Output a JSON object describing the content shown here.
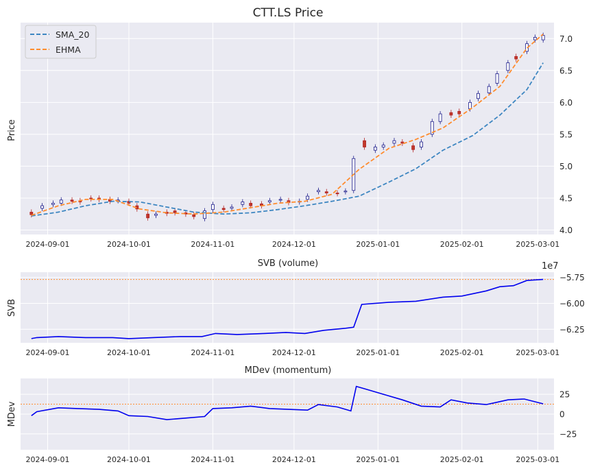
{
  "chart_data": [
    {
      "type": "candlestick",
      "title": "CTT.LS Price",
      "ylabel": "Price",
      "xlim": [
        "2024-08-22",
        "2025-03-07"
      ],
      "ylim": [
        3.93,
        7.25
      ],
      "y_ticks": [
        4.0,
        4.5,
        5.0,
        5.5,
        6.0,
        6.5,
        7.0
      ],
      "y_tick_labels": [
        "4.0",
        "4.5",
        "5.0",
        "5.5",
        "6.0",
        "6.5",
        "7.0"
      ],
      "x_ticks": [
        "2024-09-01",
        "2024-10-01",
        "2024-11-01",
        "2024-12-01",
        "2025-01-01",
        "2025-02-01",
        "2025-03-01"
      ],
      "grid": true,
      "legend": "top-left",
      "series": [
        {
          "name": "SMA_20",
          "style": "dashed",
          "color": "#3d86c1",
          "x": [
            "2024-08-26",
            "2024-09-05",
            "2024-09-15",
            "2024-09-25",
            "2024-10-05",
            "2024-10-15",
            "2024-10-25",
            "2024-11-05",
            "2024-11-15",
            "2024-11-25",
            "2024-12-05",
            "2024-12-15",
            "2024-12-25",
            "2025-01-05",
            "2025-01-15",
            "2025-01-25",
            "2025-02-05",
            "2025-02-15",
            "2025-02-25",
            "2025-03-03"
          ],
          "values": [
            4.22,
            4.28,
            4.38,
            4.45,
            4.44,
            4.36,
            4.28,
            4.25,
            4.27,
            4.32,
            4.38,
            4.45,
            4.53,
            4.75,
            4.96,
            5.25,
            5.48,
            5.8,
            6.2,
            6.62
          ]
        },
        {
          "name": "EHMA",
          "style": "dashed",
          "color": "#ff8c2e",
          "x": [
            "2024-08-26",
            "2024-09-05",
            "2024-09-15",
            "2024-09-25",
            "2024-10-05",
            "2024-10-15",
            "2024-10-25",
            "2024-11-05",
            "2024-11-15",
            "2024-11-25",
            "2024-12-05",
            "2024-12-15",
            "2024-12-25",
            "2025-01-05",
            "2025-01-15",
            "2025-01-25",
            "2025-02-05",
            "2025-02-15",
            "2025-02-25",
            "2025-03-03"
          ],
          "values": [
            4.23,
            4.38,
            4.48,
            4.48,
            4.33,
            4.27,
            4.25,
            4.28,
            4.35,
            4.42,
            4.45,
            4.56,
            4.95,
            5.28,
            5.42,
            5.6,
            5.92,
            6.25,
            6.85,
            7.07
          ]
        }
      ],
      "candles": [
        {
          "d": "2024-08-26",
          "o": 4.28,
          "c": 4.24
        },
        {
          "d": "2024-08-30",
          "o": 4.34,
          "c": 4.38
        },
        {
          "d": "2024-09-03",
          "o": 4.4,
          "c": 4.42
        },
        {
          "d": "2024-09-06",
          "o": 4.42,
          "c": 4.47
        },
        {
          "d": "2024-09-10",
          "o": 4.47,
          "c": 4.45
        },
        {
          "d": "2024-09-13",
          "o": 4.46,
          "c": 4.44
        },
        {
          "d": "2024-09-17",
          "o": 4.5,
          "c": 4.49
        },
        {
          "d": "2024-09-20",
          "o": 4.5,
          "c": 4.48
        },
        {
          "d": "2024-09-24",
          "o": 4.48,
          "c": 4.45
        },
        {
          "d": "2024-09-27",
          "o": 4.46,
          "c": 4.47
        },
        {
          "d": "2024-10-01",
          "o": 4.45,
          "c": 4.42
        },
        {
          "d": "2024-10-04",
          "o": 4.38,
          "c": 4.33
        },
        {
          "d": "2024-10-08",
          "o": 4.25,
          "c": 4.19
        },
        {
          "d": "2024-10-11",
          "o": 4.23,
          "c": 4.25
        },
        {
          "d": "2024-10-15",
          "o": 4.28,
          "c": 4.26
        },
        {
          "d": "2024-10-18",
          "o": 4.3,
          "c": 4.27
        },
        {
          "d": "2024-10-22",
          "o": 4.27,
          "c": 4.25
        },
        {
          "d": "2024-10-25",
          "o": 4.24,
          "c": 4.21
        },
        {
          "d": "2024-10-29",
          "o": 4.18,
          "c": 4.3
        },
        {
          "d": "2024-11-01",
          "o": 4.32,
          "c": 4.4
        },
        {
          "d": "2024-11-05",
          "o": 4.34,
          "c": 4.32
        },
        {
          "d": "2024-11-08",
          "o": 4.34,
          "c": 4.36
        },
        {
          "d": "2024-11-12",
          "o": 4.4,
          "c": 4.44
        },
        {
          "d": "2024-11-15",
          "o": 4.42,
          "c": 4.38
        },
        {
          "d": "2024-11-19",
          "o": 4.41,
          "c": 4.38
        },
        {
          "d": "2024-11-22",
          "o": 4.44,
          "c": 4.46
        },
        {
          "d": "2024-11-26",
          "o": 4.47,
          "c": 4.48
        },
        {
          "d": "2024-11-29",
          "o": 4.46,
          "c": 4.43
        },
        {
          "d": "2024-12-03",
          "o": 4.44,
          "c": 4.45
        },
        {
          "d": "2024-12-06",
          "o": 4.48,
          "c": 4.53
        },
        {
          "d": "2024-12-10",
          "o": 4.6,
          "c": 4.62
        },
        {
          "d": "2024-12-13",
          "o": 4.6,
          "c": 4.58
        },
        {
          "d": "2024-12-17",
          "o": 4.58,
          "c": 4.57
        },
        {
          "d": "2024-12-20",
          "o": 4.6,
          "c": 4.61
        },
        {
          "d": "2024-12-23",
          "o": 4.62,
          "c": 5.12
        },
        {
          "d": "2024-12-27",
          "o": 5.4,
          "c": 5.3
        },
        {
          "d": "2024-12-31",
          "o": 5.25,
          "c": 5.3
        },
        {
          "d": "2025-01-03",
          "o": 5.3,
          "c": 5.33
        },
        {
          "d": "2025-01-07",
          "o": 5.36,
          "c": 5.4
        },
        {
          "d": "2025-01-10",
          "o": 5.38,
          "c": 5.36
        },
        {
          "d": "2025-01-14",
          "o": 5.32,
          "c": 5.26
        },
        {
          "d": "2025-01-17",
          "o": 5.3,
          "c": 5.38
        },
        {
          "d": "2025-01-21",
          "o": 5.5,
          "c": 5.7
        },
        {
          "d": "2025-01-24",
          "o": 5.7,
          "c": 5.82
        },
        {
          "d": "2025-01-28",
          "o": 5.84,
          "c": 5.8
        },
        {
          "d": "2025-01-31",
          "o": 5.86,
          "c": 5.82
        },
        {
          "d": "2025-02-04",
          "o": 5.9,
          "c": 6.0
        },
        {
          "d": "2025-02-07",
          "o": 6.06,
          "c": 6.14
        },
        {
          "d": "2025-02-11",
          "o": 6.15,
          "c": 6.25
        },
        {
          "d": "2025-02-14",
          "o": 6.3,
          "c": 6.45
        },
        {
          "d": "2025-02-18",
          "o": 6.5,
          "c": 6.62
        },
        {
          "d": "2025-02-21",
          "o": 6.72,
          "c": 6.68
        },
        {
          "d": "2025-02-25",
          "o": 6.8,
          "c": 6.92
        },
        {
          "d": "2025-02-28",
          "o": 6.98,
          "c": 7.02
        },
        {
          "d": "2025-03-03",
          "o": 6.98,
          "c": 7.05
        }
      ]
    },
    {
      "type": "line",
      "title": "SVB (volume)",
      "ylabel": "SVB",
      "offset_text": "1e7",
      "ylim": [
        -6.38,
        -5.7
      ],
      "y_ticks": [
        -6.25,
        -6.0,
        -5.75
      ],
      "y_tick_labels": [
        "−6.25",
        "−6.00",
        "−5.75"
      ],
      "x_ticks": [
        "2024-09-01",
        "2024-10-01",
        "2024-11-01",
        "2024-12-01",
        "2025-01-01",
        "2025-02-01",
        "2025-03-01"
      ],
      "reference_line": -5.77,
      "series": [
        {
          "color": "#0000ee",
          "x": [
            "2024-08-26",
            "2024-08-28",
            "2024-09-05",
            "2024-09-15",
            "2024-09-25",
            "2024-10-01",
            "2024-10-10",
            "2024-10-20",
            "2024-10-28",
            "2024-11-02",
            "2024-11-10",
            "2024-11-20",
            "2024-11-28",
            "2024-12-05",
            "2024-12-12",
            "2024-12-20",
            "2024-12-23",
            "2024-12-26",
            "2025-01-05",
            "2025-01-15",
            "2025-01-25",
            "2025-02-01",
            "2025-02-10",
            "2025-02-15",
            "2025-02-20",
            "2025-02-25",
            "2025-03-03"
          ],
          "values": [
            -6.34,
            -6.33,
            -6.32,
            -6.33,
            -6.33,
            -6.34,
            -6.33,
            -6.32,
            -6.32,
            -6.29,
            -6.3,
            -6.29,
            -6.28,
            -6.29,
            -6.26,
            -6.24,
            -6.23,
            -6.01,
            -5.99,
            -5.98,
            -5.94,
            -5.93,
            -5.88,
            -5.84,
            -5.83,
            -5.78,
            -5.77
          ]
        }
      ]
    },
    {
      "type": "line",
      "title": "MDev (momentum)",
      "ylabel": "MDev",
      "ylim": [
        -45,
        45
      ],
      "y_ticks": [
        -25,
        0,
        25
      ],
      "y_tick_labels": [
        "−25",
        "0",
        "25"
      ],
      "x_ticks": [
        "2024-09-01",
        "2024-10-01",
        "2024-11-01",
        "2024-12-01",
        "2025-01-01",
        "2025-02-01",
        "2025-03-01"
      ],
      "reference_line": 12.5,
      "series": [
        {
          "color": "#0000ee",
          "x": [
            "2024-08-26",
            "2024-08-28",
            "2024-09-05",
            "2024-09-12",
            "2024-09-20",
            "2024-09-27",
            "2024-10-01",
            "2024-10-08",
            "2024-10-15",
            "2024-10-22",
            "2024-10-29",
            "2024-11-01",
            "2024-11-08",
            "2024-11-15",
            "2024-11-22",
            "2024-11-29",
            "2024-12-06",
            "2024-12-10",
            "2024-12-17",
            "2024-12-22",
            "2024-12-24",
            "2024-12-27",
            "2025-01-03",
            "2025-01-10",
            "2025-01-17",
            "2025-01-24",
            "2025-01-28",
            "2025-02-03",
            "2025-02-10",
            "2025-02-14",
            "2025-02-18",
            "2025-02-24",
            "2025-03-03"
          ],
          "values": [
            -2,
            3,
            8,
            7,
            6,
            4,
            -2,
            -3,
            -7,
            -5,
            -3,
            7,
            8,
            10,
            7,
            6,
            5,
            12,
            9,
            4,
            35,
            32,
            25,
            18,
            10,
            9,
            18,
            14,
            12,
            15,
            18,
            19,
            13
          ]
        }
      ]
    }
  ]
}
